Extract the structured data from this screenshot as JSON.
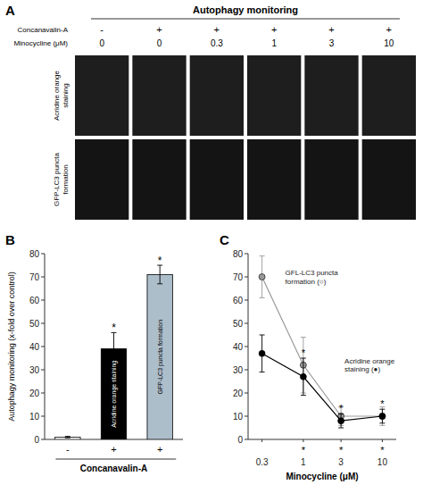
{
  "chart_data": [
    {
      "type": "image_grid",
      "title": "A",
      "subtitle": "Autophagy monitoring",
      "categories": [
        "0",
        "0",
        "0.3",
        "1",
        "3",
        "10"
      ],
      "column_signs": [
        "-",
        "+",
        "+",
        "+",
        "+",
        "+"
      ],
      "row_labels": [
        "Concanavalin-A",
        "Minocycline (μM)"
      ],
      "rows": [
        "Acridine orange\nstaining",
        "GFP-LC3 puncta\nformation"
      ]
    },
    {
      "type": "bar",
      "title": "B",
      "categories": [
        "-",
        "+",
        "+"
      ],
      "values": [
        1,
        39,
        71
      ],
      "errors": [
        0.3,
        7,
        4
      ],
      "colors": [
        "white",
        "black",
        "#adbecb"
      ],
      "bar_labels": [
        null,
        "Acridine orange staining",
        "GFP-LC3 puncta formation"
      ],
      "significant": [
        false,
        true,
        true
      ],
      "significance_label": "*",
      "ylabel": "Autophagy monitoring (x-fold over control)",
      "xlabel": "Concanavalin-A",
      "ylim": [
        0,
        80
      ],
      "yticks": [
        0,
        10,
        20,
        30,
        40,
        50,
        60,
        70,
        80
      ]
    },
    {
      "type": "line",
      "title": "C",
      "log": "x",
      "x": [
        0.3,
        1,
        3,
        10
      ],
      "xlim": [
        0.2,
        15
      ],
      "xticks": [
        0.3,
        1,
        3,
        10
      ],
      "ylim": [
        0,
        80
      ],
      "yticks": [
        0,
        10,
        20,
        30,
        40,
        50,
        60,
        70,
        80
      ],
      "xlabel": "Minocycline (μM)",
      "significance_label": "*",
      "series": [
        {
          "name": "GFL-LC3 puncta\nformation (○)",
          "color": "#999999",
          "marker": "circle",
          "line_style": "solid",
          "values": [
            70,
            32,
            10,
            10
          ],
          "errors": [
            9,
            12,
            4,
            4
          ],
          "significant_above": [
            false,
            false,
            false,
            false
          ],
          "significant_below": [
            false,
            false,
            false,
            false
          ]
        },
        {
          "name": "Acridine orange\nstaining (●)",
          "color": "black",
          "marker": "circle",
          "line_style": "solid",
          "values": [
            37,
            27,
            8,
            10
          ],
          "errors": [
            8,
            8,
            3,
            3
          ],
          "significant_above": [
            false,
            true,
            true,
            true
          ],
          "significant_below": [
            false,
            true,
            true,
            true
          ]
        }
      ]
    }
  ]
}
